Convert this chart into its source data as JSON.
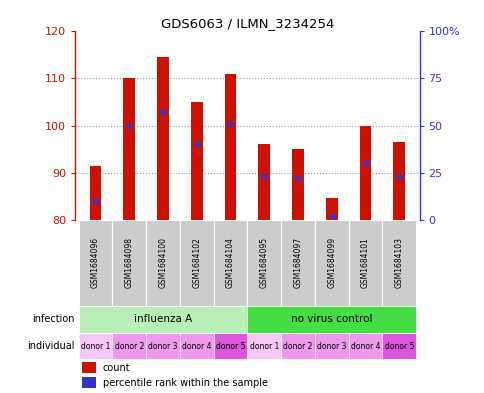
{
  "title": "GDS6063 / ILMN_3234254",
  "samples": [
    "GSM1684096",
    "GSM1684098",
    "GSM1684100",
    "GSM1684102",
    "GSM1684104",
    "GSM1684095",
    "GSM1684097",
    "GSM1684099",
    "GSM1684101",
    "GSM1684103"
  ],
  "count_values": [
    91.5,
    110.0,
    114.5,
    105.0,
    111.0,
    96.0,
    95.0,
    84.5,
    100.0,
    96.5
  ],
  "percentile_values": [
    10,
    50,
    57,
    40,
    51,
    23,
    22,
    2,
    30,
    23
  ],
  "ylim_left": [
    80,
    120
  ],
  "ylim_right": [
    0,
    100
  ],
  "yticks_left": [
    80,
    90,
    100,
    110,
    120
  ],
  "yticks_right": [
    0,
    25,
    50,
    75,
    100
  ],
  "ytick_right_labels": [
    "0",
    "25",
    "50",
    "75",
    "100%"
  ],
  "infection_groups": [
    {
      "label": "influenza A",
      "start": 0,
      "end": 5,
      "color": "#b8f0b8"
    },
    {
      "label": "no virus control",
      "start": 5,
      "end": 10,
      "color": "#44dd44"
    }
  ],
  "individual_labels": [
    "donor 1",
    "donor 2",
    "donor 3",
    "donor 4",
    "donor 5",
    "donor 1",
    "donor 2",
    "donor 3",
    "donor 4",
    "donor 5"
  ],
  "individual_colors": [
    "#f5c8f5",
    "#ee99ee",
    "#ee99ee",
    "#ee99ee",
    "#dd55dd",
    "#f5c8f5",
    "#ee99ee",
    "#ee99ee",
    "#ee99ee",
    "#dd55dd"
  ],
  "bar_color": "#cc1100",
  "blue_color": "#3333cc",
  "bar_bottom": 80,
  "bar_width": 0.35,
  "background_color": "#ffffff",
  "grid_color": "#999999",
  "legend_count_label": "count",
  "legend_percentile_label": "percentile rank within the sample",
  "sample_bg_color": "#cccccc"
}
